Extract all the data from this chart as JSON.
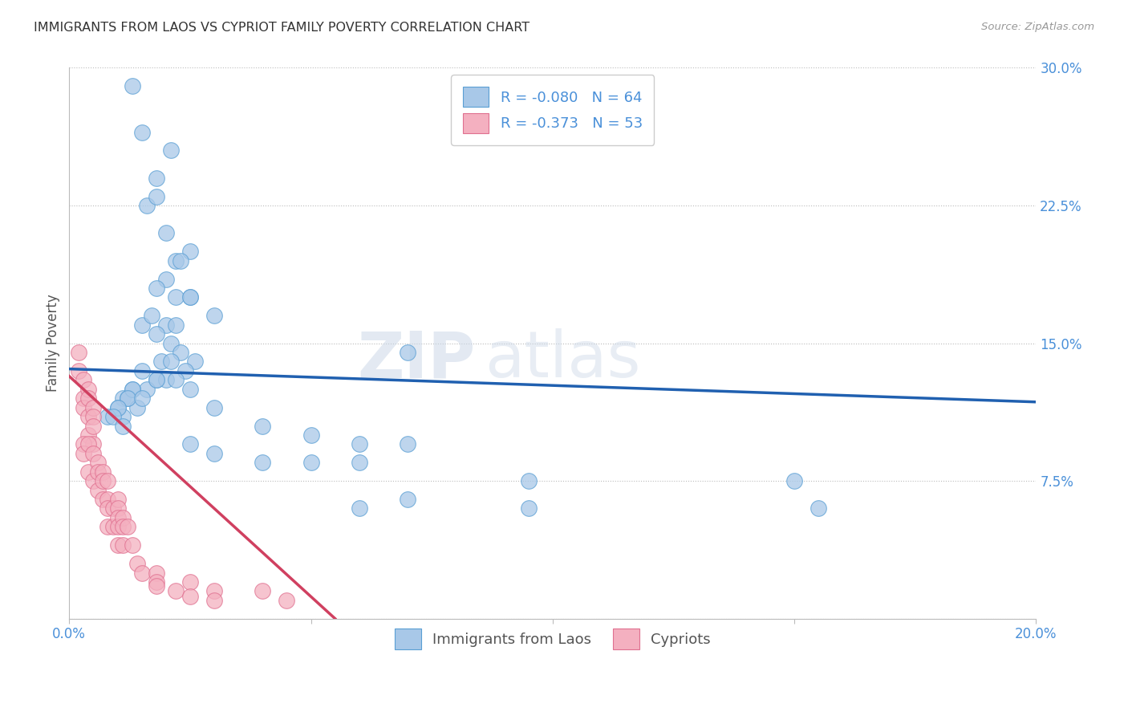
{
  "title": "IMMIGRANTS FROM LAOS VS CYPRIOT FAMILY POVERTY CORRELATION CHART",
  "source_text": "Source: ZipAtlas.com",
  "ylabel": "Family Poverty",
  "xlim": [
    0.0,
    0.2
  ],
  "ylim": [
    0.0,
    0.3
  ],
  "xticks": [
    0.0,
    0.05,
    0.1,
    0.15,
    0.2
  ],
  "xtick_labels": [
    "0.0%",
    "",
    "",
    "",
    "20.0%"
  ],
  "yticks": [
    0.0,
    0.075,
    0.15,
    0.225,
    0.3
  ],
  "ytick_labels": [
    "",
    "7.5%",
    "15.0%",
    "22.5%",
    "30.0%"
  ],
  "blue_R": -0.08,
  "blue_N": 64,
  "pink_R": -0.373,
  "pink_N": 53,
  "blue_color": "#a8c8e8",
  "pink_color": "#f4b0c0",
  "blue_edge_color": "#5a9fd4",
  "pink_edge_color": "#e07090",
  "blue_line_color": "#2060b0",
  "pink_line_color": "#d04060",
  "legend_label_blue": "Immigrants from Laos",
  "legend_label_pink": "Cypriots",
  "watermark_zip": "ZIP",
  "watermark_atlas": "atlas",
  "blue_line_x0": 0.0,
  "blue_line_x1": 0.2,
  "blue_line_y0": 0.136,
  "blue_line_y1": 0.118,
  "pink_line_x0": 0.0,
  "pink_line_x1": 0.055,
  "pink_line_y0": 0.132,
  "pink_line_y1": 0.0,
  "blue_x": [
    0.013,
    0.015,
    0.018,
    0.021,
    0.016,
    0.018,
    0.02,
    0.022,
    0.025,
    0.02,
    0.023,
    0.025,
    0.018,
    0.022,
    0.025,
    0.015,
    0.017,
    0.02,
    0.022,
    0.018,
    0.021,
    0.023,
    0.026,
    0.019,
    0.021,
    0.024,
    0.015,
    0.018,
    0.02,
    0.016,
    0.013,
    0.011,
    0.012,
    0.014,
    0.01,
    0.011,
    0.013,
    0.012,
    0.01,
    0.008,
    0.009,
    0.011,
    0.015,
    0.018,
    0.022,
    0.025,
    0.03,
    0.04,
    0.05,
    0.06,
    0.07,
    0.04,
    0.05,
    0.06,
    0.025,
    0.03,
    0.06,
    0.07,
    0.095,
    0.155,
    0.095,
    0.15,
    0.03,
    0.07
  ],
  "blue_y": [
    0.29,
    0.265,
    0.24,
    0.255,
    0.225,
    0.23,
    0.21,
    0.195,
    0.2,
    0.185,
    0.195,
    0.175,
    0.18,
    0.175,
    0.175,
    0.16,
    0.165,
    0.16,
    0.16,
    0.155,
    0.15,
    0.145,
    0.14,
    0.14,
    0.14,
    0.135,
    0.135,
    0.13,
    0.13,
    0.125,
    0.125,
    0.12,
    0.12,
    0.115,
    0.115,
    0.11,
    0.125,
    0.12,
    0.115,
    0.11,
    0.11,
    0.105,
    0.12,
    0.13,
    0.13,
    0.125,
    0.115,
    0.105,
    0.1,
    0.095,
    0.095,
    0.085,
    0.085,
    0.085,
    0.095,
    0.09,
    0.06,
    0.065,
    0.06,
    0.06,
    0.075,
    0.075,
    0.165,
    0.145
  ],
  "pink_x": [
    0.002,
    0.002,
    0.003,
    0.003,
    0.003,
    0.004,
    0.004,
    0.004,
    0.004,
    0.005,
    0.005,
    0.005,
    0.005,
    0.003,
    0.003,
    0.004,
    0.004,
    0.005,
    0.005,
    0.006,
    0.006,
    0.006,
    0.007,
    0.007,
    0.007,
    0.008,
    0.008,
    0.008,
    0.008,
    0.009,
    0.009,
    0.01,
    0.01,
    0.01,
    0.01,
    0.01,
    0.011,
    0.011,
    0.011,
    0.012,
    0.013,
    0.014,
    0.015,
    0.018,
    0.018,
    0.018,
    0.022,
    0.025,
    0.025,
    0.03,
    0.03,
    0.04,
    0.045
  ],
  "pink_y": [
    0.145,
    0.135,
    0.13,
    0.12,
    0.115,
    0.125,
    0.12,
    0.11,
    0.1,
    0.115,
    0.11,
    0.105,
    0.095,
    0.095,
    0.09,
    0.095,
    0.08,
    0.09,
    0.075,
    0.085,
    0.08,
    0.07,
    0.08,
    0.075,
    0.065,
    0.075,
    0.065,
    0.06,
    0.05,
    0.06,
    0.05,
    0.065,
    0.06,
    0.055,
    0.05,
    0.04,
    0.055,
    0.05,
    0.04,
    0.05,
    0.04,
    0.03,
    0.025,
    0.025,
    0.02,
    0.018,
    0.015,
    0.02,
    0.012,
    0.015,
    0.01,
    0.015,
    0.01
  ]
}
